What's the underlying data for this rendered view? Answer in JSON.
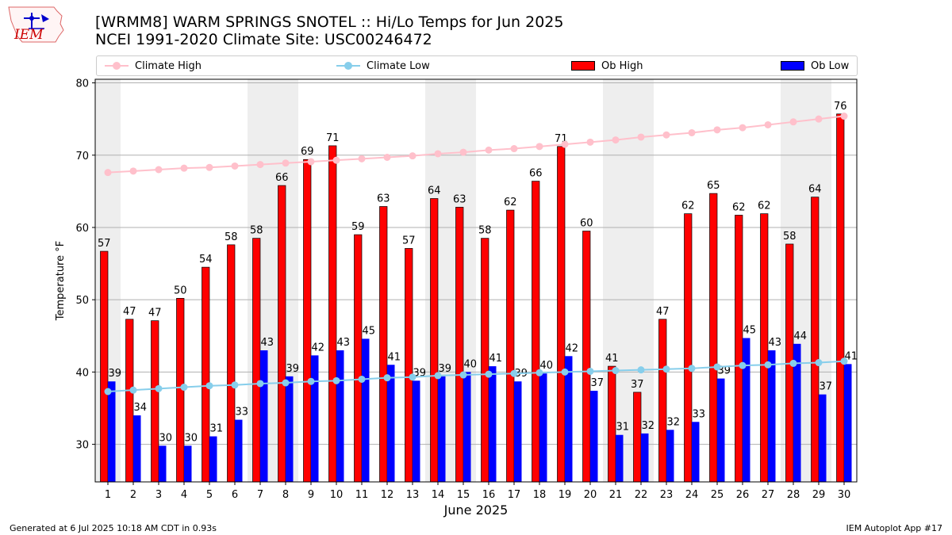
{
  "header": {
    "title_line1": "[WRMM8] WARM SPRINGS SNOTEL :: Hi/Lo Temps for Jun 2025",
    "title_line2": "NCEI 1991-2020 Climate Site: USC00246472",
    "logo_text": "IEM"
  },
  "legend": {
    "climate_high": "Climate High",
    "climate_low": "Climate Low",
    "ob_high": "Ob High",
    "ob_low": "Ob Low"
  },
  "footer": {
    "generated": "Generated at 6 Jul 2025 10:18 AM CDT in 0.93s",
    "app": "IEM Autoplot App #17"
  },
  "colors": {
    "ob_high": "#ff0000",
    "ob_low": "#0000ff",
    "climate_high": "#ffc0cb",
    "climate_low": "#87ceeb",
    "weekend_shade": "#eeeeee",
    "grid": "#b0b0b0"
  },
  "chart_data": {
    "type": "bar",
    "xlabel": "June 2025",
    "ylabel": "Temperature °F",
    "ylim": [
      24.8,
      80.5
    ],
    "yticks": [
      30,
      40,
      50,
      60,
      70,
      80
    ],
    "grid": "horizontal",
    "legend_position": "top",
    "categories": [
      "1",
      "2",
      "3",
      "4",
      "5",
      "6",
      "7",
      "8",
      "9",
      "10",
      "11",
      "12",
      "13",
      "14",
      "15",
      "16",
      "17",
      "18",
      "19",
      "20",
      "21",
      "22",
      "23",
      "24",
      "25",
      "26",
      "27",
      "28",
      "29",
      "30"
    ],
    "shaded_days": [
      1,
      7,
      8,
      14,
      15,
      21,
      22,
      28,
      29
    ],
    "series": [
      {
        "name": "Ob High",
        "kind": "bar",
        "values": [
          56.7,
          47.3,
          47.1,
          50.2,
          54.5,
          57.6,
          58.5,
          65.8,
          69.4,
          71.3,
          59.0,
          62.9,
          57.1,
          64.0,
          62.8,
          58.5,
          62.4,
          66.4,
          71.2,
          59.5,
          40.8,
          37.2,
          47.3,
          61.9,
          64.7,
          61.7,
          61.9,
          57.7,
          64.2,
          75.7
        ],
        "labels": [
          "57",
          "47",
          "47",
          "50",
          "54",
          "58",
          "58",
          "66",
          "69",
          "71",
          "59",
          "63",
          "57",
          "64",
          "63",
          "58",
          "62",
          "66",
          "71",
          "60",
          "41",
          "37",
          "47",
          "62",
          "65",
          "62",
          "62",
          "58",
          "64",
          "76"
        ]
      },
      {
        "name": "Ob Low",
        "kind": "bar",
        "values": [
          38.7,
          34.0,
          29.8,
          29.8,
          31.1,
          33.4,
          43.0,
          39.4,
          42.3,
          43.0,
          44.6,
          41.0,
          38.8,
          39.4,
          40.0,
          40.8,
          38.7,
          39.8,
          42.2,
          37.4,
          31.3,
          31.5,
          32.0,
          33.1,
          39.1,
          44.7,
          43.0,
          43.9,
          36.9,
          41.1
        ],
        "labels": [
          "39",
          "34",
          "30",
          "30",
          "31",
          "33",
          "43",
          "39",
          "42",
          "43",
          "45",
          "41",
          "39",
          "39",
          "40",
          "41",
          "39",
          "40",
          "42",
          "37",
          "31",
          "32",
          "32",
          "33",
          "39",
          "45",
          "43",
          "44",
          "37",
          "41"
        ]
      },
      {
        "name": "Climate High",
        "kind": "line",
        "values": [
          67.6,
          67.8,
          68.0,
          68.2,
          68.3,
          68.5,
          68.7,
          68.9,
          69.1,
          69.3,
          69.5,
          69.7,
          69.9,
          70.2,
          70.4,
          70.7,
          70.9,
          71.2,
          71.5,
          71.8,
          72.1,
          72.5,
          72.8,
          73.1,
          73.5,
          73.8,
          74.2,
          74.6,
          75.0,
          75.4
        ]
      },
      {
        "name": "Climate Low",
        "kind": "line",
        "values": [
          37.3,
          37.5,
          37.7,
          37.9,
          38.1,
          38.2,
          38.4,
          38.5,
          38.7,
          38.8,
          39.0,
          39.2,
          39.3,
          39.5,
          39.6,
          39.7,
          39.8,
          39.9,
          40.0,
          40.1,
          40.2,
          40.3,
          40.4,
          40.5,
          40.7,
          40.9,
          41.0,
          41.2,
          41.3,
          41.5
        ]
      }
    ]
  }
}
